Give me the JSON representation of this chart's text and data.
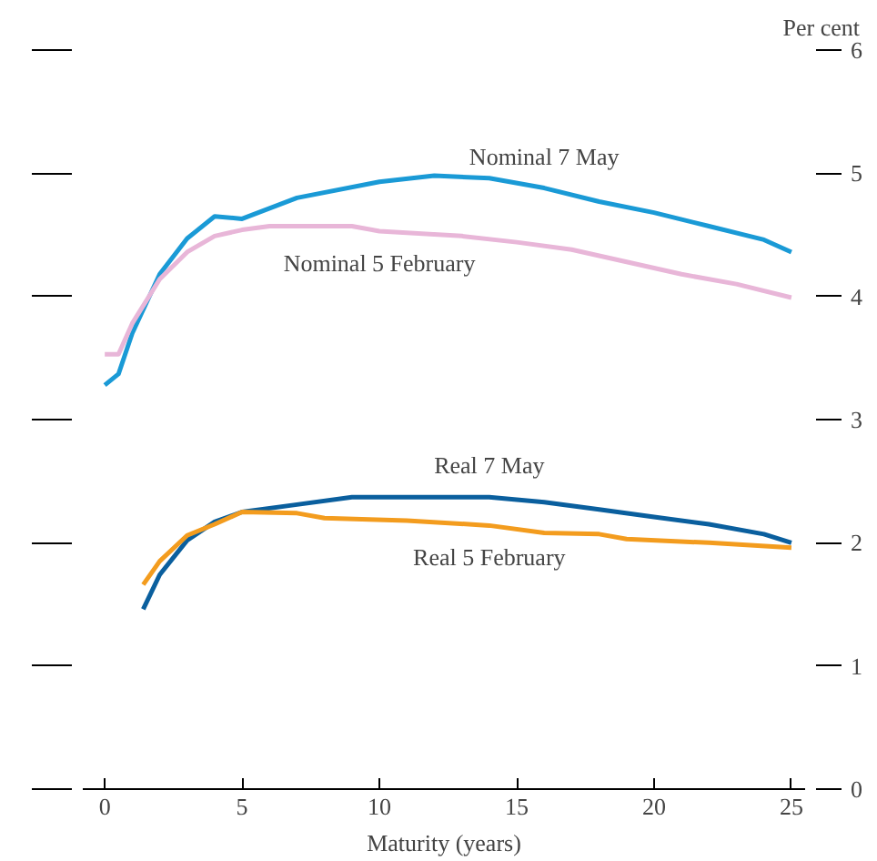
{
  "chart_data": {
    "type": "line",
    "xlabel": "Maturity (years)",
    "y2label": "Per cent",
    "xlim": [
      -0.8,
      25.5
    ],
    "xticks": [
      0,
      5,
      10,
      15,
      20,
      25
    ],
    "y2lim": [
      0,
      6
    ],
    "y2ticks": [
      0,
      1,
      2,
      3,
      4,
      5,
      6
    ],
    "grid": false,
    "legend": false,
    "marker": "none",
    "line_style": "solid",
    "series": [
      {
        "name": "Nominal 7 May",
        "color": "#1a9ad6",
        "axis": "y2",
        "x": [
          0,
          0.5,
          1,
          2,
          3,
          4,
          5,
          7,
          10,
          12,
          14,
          16,
          18,
          20,
          22,
          24,
          25
        ],
        "values": [
          3.28,
          3.37,
          3.7,
          4.18,
          4.47,
          4.65,
          4.63,
          4.8,
          4.93,
          4.98,
          4.96,
          4.88,
          4.77,
          4.68,
          4.57,
          4.46,
          4.36
        ]
      },
      {
        "name": "Nominal 5 February",
        "color": "#e8b6d8",
        "axis": "y2",
        "x": [
          0,
          0.5,
          1,
          2,
          3,
          4,
          5,
          6,
          9,
          10,
          13,
          15,
          17,
          19,
          21,
          23,
          25
        ],
        "values": [
          3.53,
          3.53,
          3.78,
          4.14,
          4.36,
          4.49,
          4.54,
          4.57,
          4.57,
          4.53,
          4.49,
          4.44,
          4.38,
          4.28,
          4.18,
          4.1,
          3.99
        ]
      },
      {
        "name": "Real 7 May",
        "color": "#0a5f9e",
        "axis": "y2",
        "x": [
          1.4,
          2,
          3,
          4,
          5,
          7,
          9,
          12,
          14,
          16,
          18,
          20,
          22,
          24,
          25
        ],
        "values": [
          1.46,
          1.74,
          2.02,
          2.17,
          2.25,
          2.31,
          2.37,
          2.37,
          2.37,
          2.33,
          2.27,
          2.21,
          2.15,
          2.07,
          2.0
        ]
      },
      {
        "name": "Real 5 February",
        "color": "#f39c1e",
        "axis": "y2",
        "x": [
          1.4,
          2,
          3,
          4,
          5,
          7,
          8,
          11,
          14,
          16,
          18,
          19,
          22,
          25
        ],
        "values": [
          1.66,
          1.85,
          2.06,
          2.15,
          2.25,
          2.24,
          2.2,
          2.18,
          2.14,
          2.08,
          2.07,
          2.03,
          2.0,
          1.96
        ]
      }
    ]
  }
}
